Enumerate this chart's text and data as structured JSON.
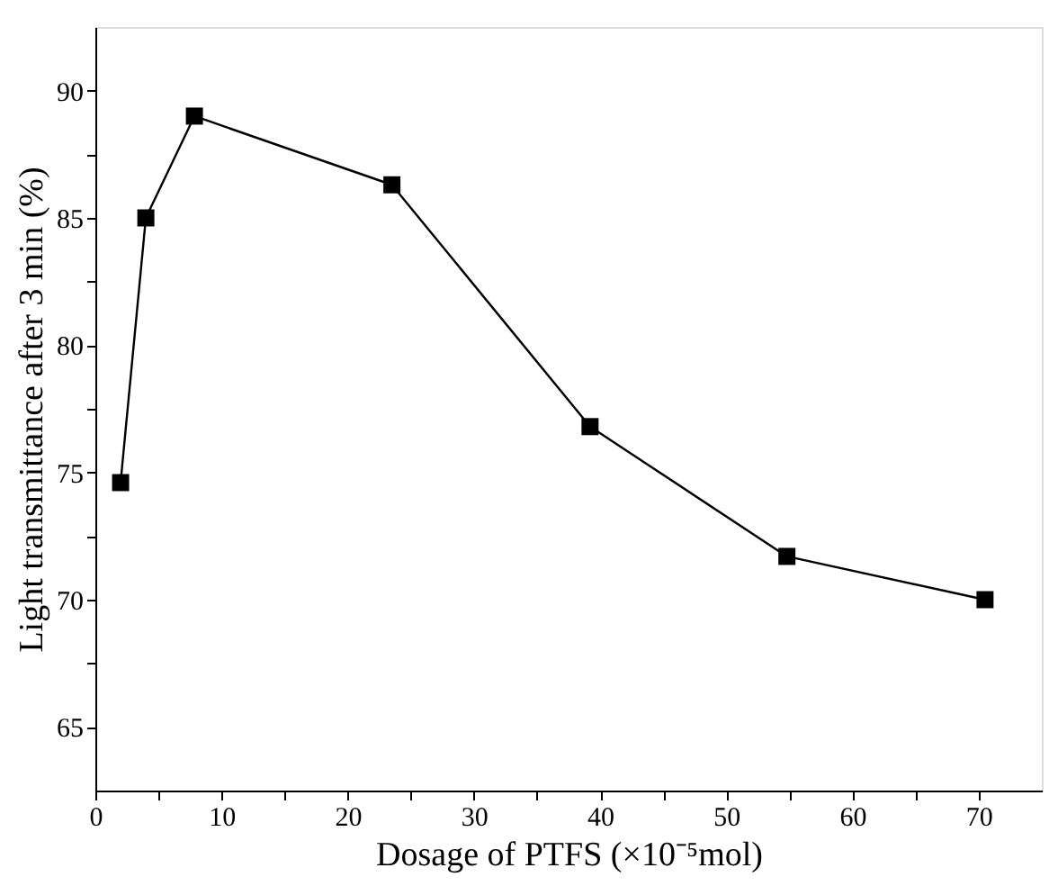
{
  "chart_data": {
    "type": "line",
    "xlabel": "Dosage of PTFS (×10⁻⁵mol)",
    "ylabel": "Light transmittance after 3 min (%)",
    "x": [
      2.0,
      4.0,
      7.85,
      23.5,
      39.2,
      54.8,
      70.5
    ],
    "series": [
      {
        "color": "#000000",
        "values": [
          74.6,
          85.0,
          89.0,
          86.3,
          76.8,
          71.7,
          70.0
        ]
      }
    ],
    "xlim": [
      0,
      75
    ],
    "ylim": [
      62.5,
      92.5
    ],
    "xticks": [
      0,
      {
        "value": 5,
        "label": null
      },
      10,
      {
        "value": 15,
        "label": null
      },
      20,
      {
        "value": 25,
        "label": null
      },
      30,
      {
        "value": 35,
        "label": null
      },
      40,
      {
        "value": 45,
        "label": null
      },
      50,
      {
        "value": 55,
        "label": null
      },
      60,
      {
        "value": 65,
        "label": null
      },
      70
    ],
    "yticks": [
      65,
      {
        "value": 67.5,
        "label": null
      },
      70,
      {
        "value": 72.5,
        "label": null
      },
      75,
      {
        "value": 77.5,
        "label": null
      },
      80,
      {
        "value": 82.5,
        "label": null
      },
      85,
      {
        "value": 87.5,
        "label": null
      },
      90
    ],
    "marker": "square",
    "line_style": "solid",
    "grid": false
  }
}
